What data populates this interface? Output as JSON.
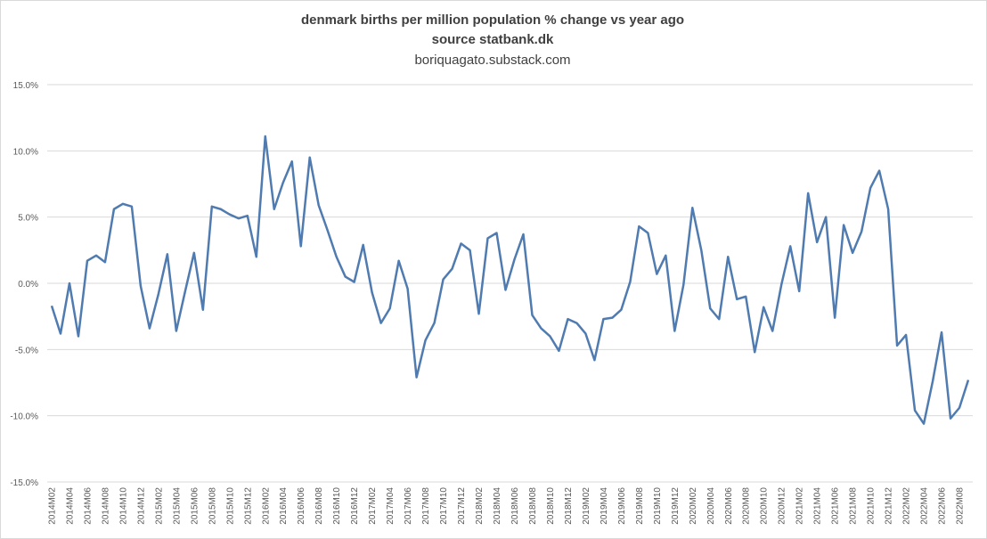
{
  "chart_data": {
    "type": "line",
    "title": "denmark births per million population % change vs year ago",
    "subtitle": "source statbank.dk",
    "annotations": [
      "boriquagato.substack.com"
    ],
    "categories": [
      "2014M02",
      null,
      "2014M04",
      null,
      "2014M06",
      null,
      "2014M08",
      null,
      "2014M10",
      null,
      "2014M12",
      null,
      "2015M02",
      null,
      "2015M04",
      null,
      "2015M06",
      null,
      "2015M08",
      null,
      "2015M10",
      null,
      "2015M12",
      null,
      "2016M02",
      null,
      "2016M04",
      null,
      "2016M06",
      null,
      "2016M08",
      null,
      "2016M10",
      null,
      "2016M12",
      null,
      "2017M02",
      null,
      "2017M04",
      null,
      "2017M06",
      null,
      "2017M08",
      null,
      "2017M10",
      null,
      "2017M12",
      null,
      "2018M02",
      null,
      "2018M04",
      null,
      "2018M06",
      null,
      "2018M08",
      null,
      "2018M10",
      null,
      "2018M12",
      null,
      "2019M02",
      null,
      "2019M04",
      null,
      "2019M06",
      null,
      "2019M08",
      null,
      "2019M10",
      null,
      "2019M12",
      null,
      "2020M02",
      null,
      "2020M04",
      null,
      "2020M06",
      null,
      "2020M08",
      null,
      "2020M10",
      null,
      "2020M12",
      null,
      "2021M02",
      null,
      "2021M04",
      null,
      "2021M06",
      null,
      "2021M08",
      null,
      "2021M10",
      null,
      "2021M12",
      null,
      "2022M02",
      null,
      "2022M04",
      null,
      "2022M06",
      null,
      "2022M08",
      null
    ],
    "series": [
      {
        "name": "births per million % change",
        "color": "#4f7bb0",
        "values": [
          -1.7,
          -3.8,
          0.0,
          -4.0,
          1.7,
          2.1,
          1.6,
          5.6,
          6.0,
          5.8,
          -0.2,
          -3.4,
          -0.8,
          2.2,
          -3.6,
          -0.6,
          2.3,
          -2.0,
          5.8,
          5.6,
          5.2,
          4.9,
          5.1,
          2.0,
          11.1,
          5.6,
          7.6,
          9.2,
          2.8,
          9.5,
          5.9,
          4.0,
          2.0,
          0.5,
          0.1,
          2.9,
          -0.7,
          -3.0,
          -1.9,
          1.7,
          -0.4,
          -7.1,
          -4.3,
          -3.0,
          0.3,
          1.1,
          3.0,
          2.5,
          -2.3,
          3.4,
          3.8,
          -0.5,
          1.8,
          3.7,
          -2.4,
          -3.4,
          -4.0,
          -5.1,
          -2.7,
          -3.0,
          -3.8,
          -5.8,
          -2.7,
          -2.6,
          -2.0,
          0.1,
          4.3,
          3.8,
          0.7,
          2.1,
          -3.6,
          -0.1,
          5.7,
          2.5,
          -1.9,
          -2.7,
          2.0,
          -1.2,
          -1.0,
          -5.2,
          -1.8,
          -3.6,
          -0.1,
          2.8,
          -0.6,
          6.8,
          3.1,
          5.0,
          -2.6,
          4.4,
          2.3,
          3.9,
          7.2,
          8.5,
          5.6,
          -4.7,
          -3.9,
          -9.6,
          -10.6,
          -7.4,
          -3.7,
          -10.2,
          -9.4,
          -7.3
        ]
      }
    ],
    "ylim": [
      -15,
      15
    ],
    "yticks": [
      {
        "value": -15,
        "label": "-15.0%"
      },
      {
        "value": -10,
        "label": "-10.0%"
      },
      {
        "value": -5,
        "label": "-5.0%"
      },
      {
        "value": 0,
        "label": "0.0%"
      },
      {
        "value": 5,
        "label": "5.0%"
      },
      {
        "value": 10,
        "label": "10.0%"
      },
      {
        "value": 15,
        "label": "15.0%"
      }
    ],
    "grid": true
  }
}
